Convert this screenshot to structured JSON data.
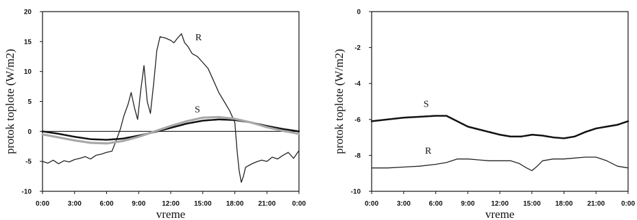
{
  "chart_data": [
    {
      "type": "line",
      "xlabel": "vreme",
      "ylabel": "protok toplote (W/m2)",
      "x_ticks": [
        "0:00",
        "3:00",
        "6:00",
        "9:00",
        "12:00",
        "15:00",
        "18:00",
        "21:00",
        "0:00"
      ],
      "y_ticks": [
        20,
        15,
        10,
        5,
        0,
        -5,
        -10
      ],
      "xlim": [
        0,
        24
      ],
      "ylim": [
        -10,
        20
      ],
      "zero_line": true,
      "series": [
        {
          "name": "R",
          "color": "#222222",
          "style": "solid",
          "x": [
            0,
            0.5,
            1,
            1.5,
            2,
            2.5,
            3,
            3.5,
            4,
            4.5,
            5,
            5.5,
            6,
            6.5,
            7,
            7.3,
            7.6,
            8,
            8.3,
            8.6,
            8.9,
            9.2,
            9.5,
            9.8,
            10.1,
            10.4,
            10.7,
            11,
            11.5,
            12,
            12.3,
            12.6,
            13,
            13.3,
            13.6,
            14,
            14.5,
            15,
            15.5,
            16,
            16.5,
            17,
            17.5,
            18,
            18.2,
            18.4,
            18.6,
            18.8,
            19,
            19.5,
            20,
            20.5,
            21,
            21.5,
            22,
            22.5,
            23,
            23.5,
            24
          ],
          "y": [
            -5,
            -5.3,
            -4.8,
            -5.4,
            -4.9,
            -5.1,
            -4.7,
            -4.5,
            -4.2,
            -4.6,
            -4,
            -3.8,
            -3.5,
            -3.3,
            -1,
            0.5,
            2.5,
            4.5,
            6.5,
            4,
            2,
            7,
            11,
            5,
            3,
            8,
            13.5,
            15.8,
            15.6,
            15.2,
            14.8,
            15.5,
            16.3,
            14.8,
            14.2,
            13,
            12.5,
            11.5,
            10.5,
            8.5,
            6.5,
            5,
            3.5,
            1.5,
            -3,
            -6.5,
            -8.5,
            -7.5,
            -6,
            -5.5,
            -5.1,
            -4.8,
            -5,
            -4.3,
            -4.6,
            -4,
            -3.5,
            -4.5,
            -3.2
          ]
        },
        {
          "name": "S",
          "color": "#111111",
          "style": "dotted",
          "x": [
            0,
            1.5,
            3,
            4.5,
            6,
            7.5,
            9,
            10.5,
            12,
            13.5,
            15,
            16.5,
            18,
            19.5,
            21,
            22.5,
            24
          ],
          "y": [
            0,
            -0.4,
            -0.9,
            -1.3,
            -1.4,
            -1.2,
            -0.7,
            -0.1,
            0.6,
            1.3,
            1.8,
            2,
            1.9,
            1.5,
            0.9,
            0.4,
            0
          ]
        },
        {
          "name": "",
          "color": "#a8a8a8",
          "style": "thick",
          "x": [
            0,
            1.5,
            3,
            4.5,
            6,
            7.5,
            9,
            10.5,
            12,
            13.5,
            15,
            16.5,
            18,
            19.5,
            21,
            22.5,
            24
          ],
          "y": [
            -0.5,
            -1,
            -1.5,
            -1.9,
            -2,
            -1.6,
            -0.9,
            0,
            0.9,
            1.7,
            2.3,
            2.4,
            2.1,
            1.5,
            0.7,
            0.1,
            -0.4
          ]
        }
      ],
      "annotations": [
        {
          "text": "R",
          "x": 14.6,
          "y": 15.2
        },
        {
          "text": "S",
          "x": 14.5,
          "y": 3.2
        }
      ]
    },
    {
      "type": "line",
      "xlabel": "vreme",
      "ylabel": "protok toplote (W/m2)",
      "x_ticks": [
        "0:00",
        "3:00",
        "6:00",
        "9:00",
        "12:00",
        "15:00",
        "18:00",
        "21:00",
        "0:00"
      ],
      "y_ticks": [
        0,
        -2,
        -4,
        -6,
        -8,
        -10
      ],
      "xlim": [
        0,
        24
      ],
      "ylim": [
        -10,
        0
      ],
      "zero_line": false,
      "series": [
        {
          "name": "S",
          "color": "#111111",
          "style": "dotted",
          "x": [
            0,
            1.5,
            3,
            4.5,
            6,
            7,
            8,
            9,
            10,
            11,
            12,
            13,
            14,
            15,
            16,
            17,
            18,
            19,
            20,
            21,
            22,
            23,
            24
          ],
          "y": [
            -6.1,
            -6,
            -5.9,
            -5.85,
            -5.8,
            -5.8,
            -6.1,
            -6.4,
            -6.55,
            -6.7,
            -6.85,
            -6.95,
            -6.95,
            -6.85,
            -6.9,
            -7,
            -7.05,
            -6.95,
            -6.7,
            -6.5,
            -6.4,
            -6.3,
            -6.1
          ]
        },
        {
          "name": "R",
          "color": "#222222",
          "style": "solid",
          "x": [
            0,
            1.5,
            3,
            4.5,
            6,
            7,
            8,
            9,
            10,
            11,
            12,
            13,
            13.8,
            14.5,
            15,
            15.5,
            16,
            17,
            18,
            19,
            20,
            21,
            22,
            23,
            24
          ],
          "y": [
            -8.7,
            -8.7,
            -8.65,
            -8.6,
            -8.5,
            -8.4,
            -8.2,
            -8.2,
            -8.25,
            -8.3,
            -8.3,
            -8.3,
            -8.45,
            -8.7,
            -8.85,
            -8.6,
            -8.3,
            -8.2,
            -8.2,
            -8.15,
            -8.1,
            -8.1,
            -8.3,
            -8.6,
            -8.7
          ]
        }
      ],
      "annotations": [
        {
          "text": "S",
          "x": 5.1,
          "y": -5.3
        },
        {
          "text": "R",
          "x": 5.3,
          "y": -7.9
        }
      ]
    }
  ]
}
